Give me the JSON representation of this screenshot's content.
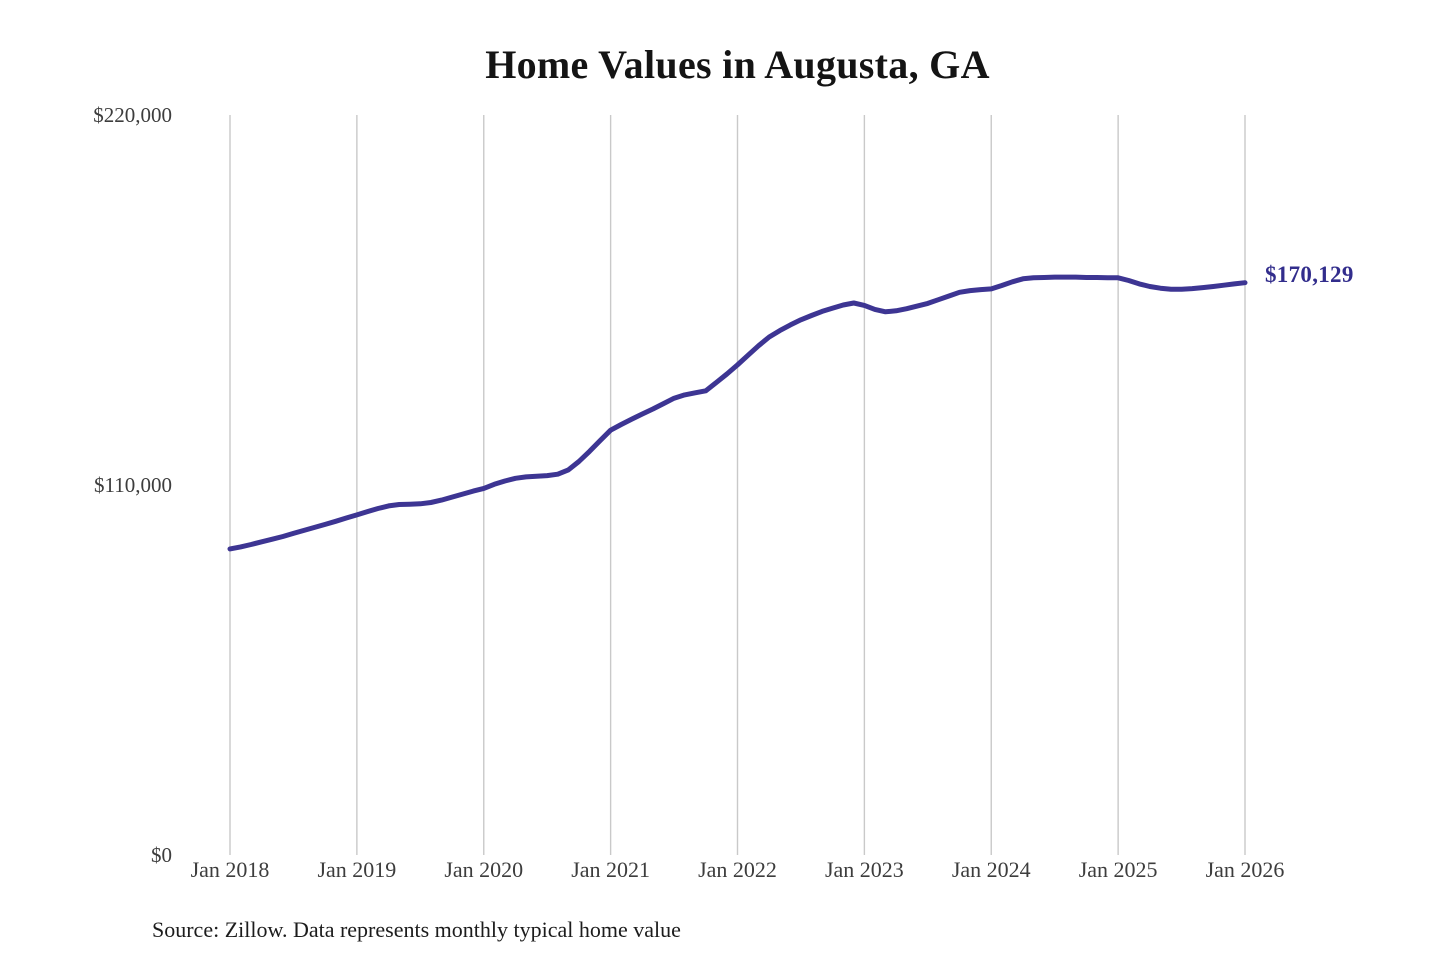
{
  "chart": {
    "background": "#ffffff",
    "colors": {
      "line": "#3d3593",
      "grid": "#c9c9c9",
      "annotation_text": "#322d8c",
      "title_text": "#141414",
      "axis_text": "#3d3d3d",
      "source_text": "#1c1c1c"
    }
  },
  "chart_data": {
    "type": "line",
    "title": "Home Values in Augusta, GA",
    "source_note": "Source: Zillow. Data represents monthly typical home value",
    "xlabel": "",
    "ylabel": "",
    "x_tick_labels": [
      "Jan 2018",
      "Jan 2019",
      "Jan 2020",
      "Jan 2021",
      "Jan 2022",
      "Jan 2023",
      "Jan 2024",
      "Jan 2025",
      "Jan 2026"
    ],
    "y_tick_labels": [
      "$0",
      "$110,000",
      "$220,000"
    ],
    "y_tick_values": [
      0,
      110000,
      220000
    ],
    "ylim": [
      0,
      220000
    ],
    "grid": "vertical-only",
    "legend": "none",
    "frequency": "monthly",
    "x_range": [
      "Jan 2018",
      "Jan 2026"
    ],
    "series": [
      {
        "name": "Typical home value",
        "color": "#3d3593",
        "values": [
          91000,
          91600,
          92300,
          93100,
          93900,
          94700,
          95600,
          96500,
          97400,
          98300,
          99200,
          100200,
          101100,
          102100,
          103000,
          103800,
          104200,
          104300,
          104400,
          104800,
          105500,
          106400,
          107300,
          108200,
          109000,
          110200,
          111200,
          112000,
          112400,
          112600,
          112800,
          113200,
          114500,
          117000,
          120000,
          123200,
          126300,
          128000,
          129600,
          131100,
          132600,
          134200,
          135800,
          136800,
          137400,
          138000,
          140500,
          143000,
          145700,
          148600,
          151400,
          154000,
          155900,
          157600,
          159100,
          160400,
          161600,
          162600,
          163500,
          164100,
          163400,
          162200,
          161500,
          161800,
          162400,
          163200,
          164000,
          165100,
          166200,
          167300,
          167800,
          168100,
          168300,
          169300,
          170400,
          171300,
          171600,
          171700,
          171800,
          171800,
          171800,
          171700,
          171700,
          171600,
          171600,
          170800,
          169800,
          169000,
          168500,
          168200,
          168200,
          168400,
          168700,
          169000,
          169400,
          169800,
          170129
        ]
      }
    ],
    "annotation": {
      "text": "$170,129",
      "value": 170129,
      "position": "end-of-line"
    }
  }
}
